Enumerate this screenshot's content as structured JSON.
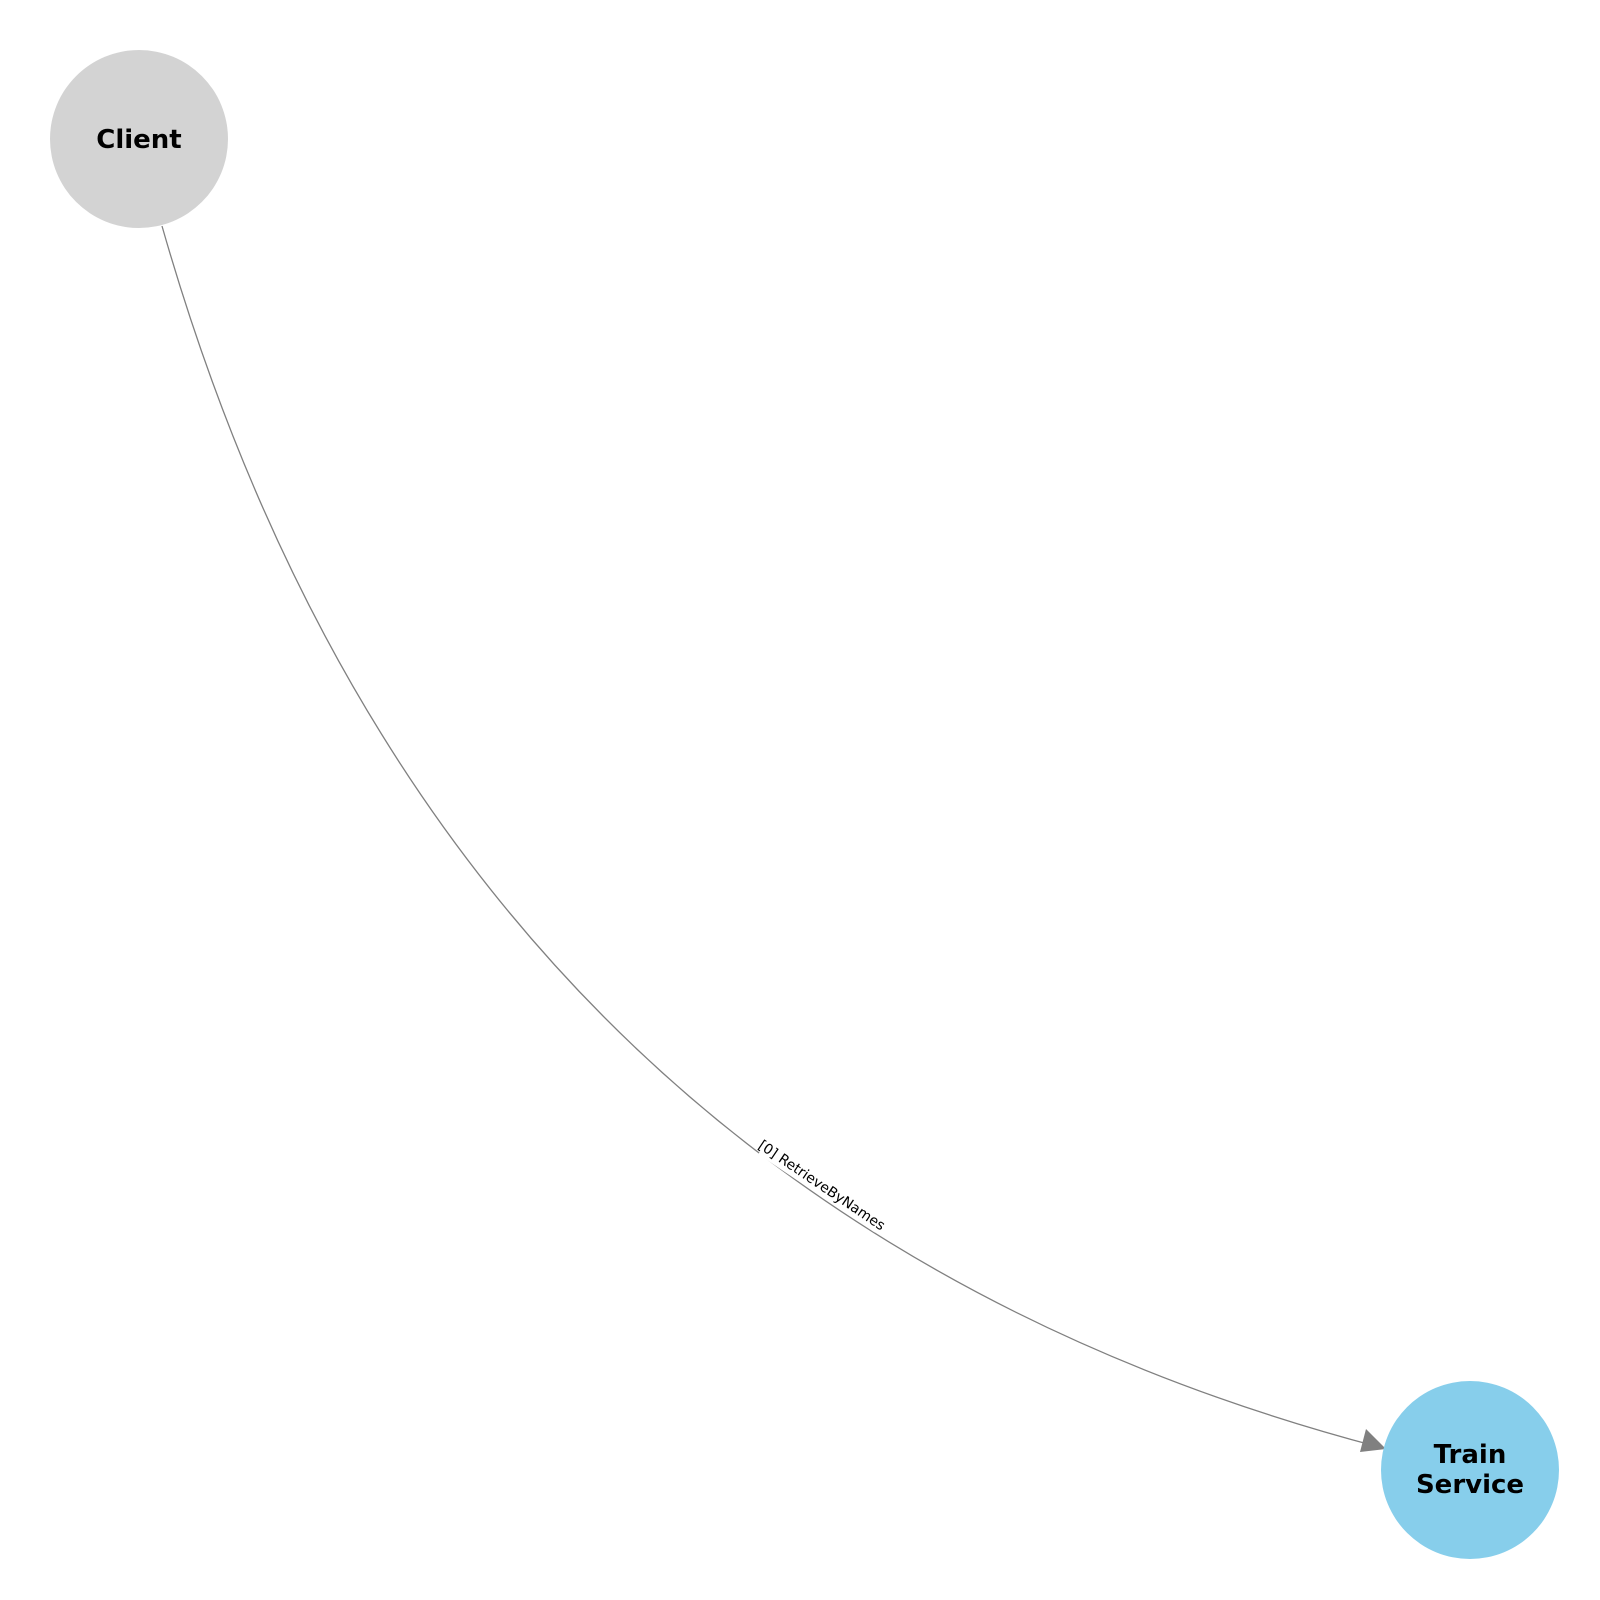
{
  "nodes": [
    {
      "id": "client",
      "label": "Client",
      "color": "#d3d3d3"
    },
    {
      "id": "train-service",
      "label_lines": [
        "Train",
        "Service"
      ],
      "color": "#87ceeb"
    }
  ],
  "edges": [
    {
      "from": "client",
      "to": "train-service",
      "label": "[0] RetrieveByNames",
      "color": "#808080"
    }
  ]
}
